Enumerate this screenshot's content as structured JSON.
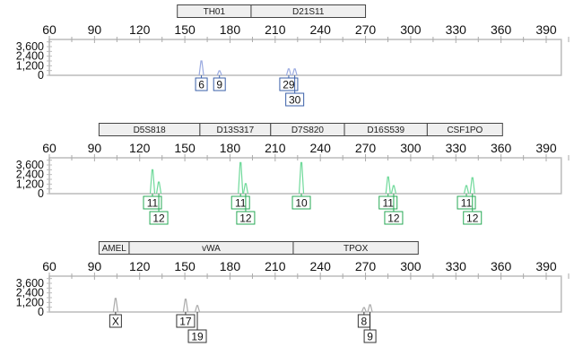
{
  "chart_data": [
    {
      "type": "electropherogram",
      "dye_color": "#3a5fa8",
      "peak_color": "#9aaae0",
      "x_ticks": [
        60,
        90,
        120,
        150,
        180,
        210,
        240,
        270,
        300,
        330,
        360,
        390
      ],
      "xlim": [
        60,
        400
      ],
      "y_ticks": [
        0,
        1200,
        2400,
        3600
      ],
      "y_tick_labels": [
        "0",
        "1,200",
        "2,400",
        "3,600"
      ],
      "ylim": [
        0,
        4500
      ],
      "loci": [
        {
          "name": "TH01",
          "range": [
            145,
            194
          ]
        },
        {
          "name": "D21S11",
          "range": [
            194,
            270
          ]
        }
      ],
      "peaks": [
        {
          "allele": "6",
          "size": 161,
          "height": 1800
        },
        {
          "allele": "9",
          "size": 173,
          "height": 560
        },
        {
          "allele": "29",
          "size": 219,
          "height": 800
        },
        {
          "allele": "30",
          "size": 223,
          "height": 800
        }
      ]
    },
    {
      "type": "electropherogram",
      "dye_color": "#27a955",
      "peak_color": "#6fd99a",
      "x_ticks": [
        60,
        90,
        120,
        150,
        180,
        210,
        240,
        270,
        300,
        330,
        360,
        390
      ],
      "xlim": [
        60,
        400
      ],
      "y_ticks": [
        0,
        1200,
        2400,
        3600
      ],
      "y_tick_labels": [
        "0",
        "1,200",
        "2,400",
        "3,600"
      ],
      "ylim": [
        0,
        4500
      ],
      "loci": [
        {
          "name": "D5S818",
          "range": [
            93,
            160
          ]
        },
        {
          "name": "D13S317",
          "range": [
            160,
            207
          ]
        },
        {
          "name": "D7S820",
          "range": [
            207,
            256
          ]
        },
        {
          "name": "D16S539",
          "range": [
            256,
            311
          ]
        },
        {
          "name": "CSF1PO",
          "range": [
            311,
            361
          ]
        }
      ],
      "peaks": [
        {
          "allele": "11",
          "size": 128.5,
          "height": 3000
        },
        {
          "allele": "12",
          "size": 132.7,
          "height": 1450
        },
        {
          "allele": "11",
          "size": 187,
          "height": 3900
        },
        {
          "allele": "12",
          "size": 190.4,
          "height": 1250
        },
        {
          "allele": "10",
          "size": 227.4,
          "height": 3900
        },
        {
          "allele": "11",
          "size": 285,
          "height": 2100
        },
        {
          "allele": "12",
          "size": 288.7,
          "height": 1000
        },
        {
          "allele": "11",
          "size": 337,
          "height": 1000
        },
        {
          "allele": "12",
          "size": 341,
          "height": 2000
        }
      ]
    },
    {
      "type": "electropherogram",
      "dye_color": "#333333",
      "peak_color": "#aaaaaa",
      "x_ticks": [
        60,
        90,
        120,
        150,
        180,
        210,
        240,
        270,
        300,
        330,
        360,
        390
      ],
      "xlim": [
        60,
        400
      ],
      "y_ticks": [
        0,
        1200,
        2400,
        3600
      ],
      "y_tick_labels": [
        "0",
        "1,200",
        "2,400",
        "3,600"
      ],
      "ylim": [
        0,
        4500
      ],
      "loci": [
        {
          "name": "AMEL",
          "range": [
            93,
            113
          ]
        },
        {
          "name": "vWA",
          "range": [
            113,
            222
          ]
        },
        {
          "name": "TPOX",
          "range": [
            222,
            305
          ]
        }
      ],
      "peaks": [
        {
          "allele": "X",
          "size": 104,
          "height": 1700
        },
        {
          "allele": "17",
          "size": 150.5,
          "height": 1600
        },
        {
          "allele": "19",
          "size": 158.3,
          "height": 800
        },
        {
          "allele": "8",
          "size": 269,
          "height": 550
        },
        {
          "allele": "9",
          "size": 273,
          "height": 900
        }
      ]
    }
  ]
}
